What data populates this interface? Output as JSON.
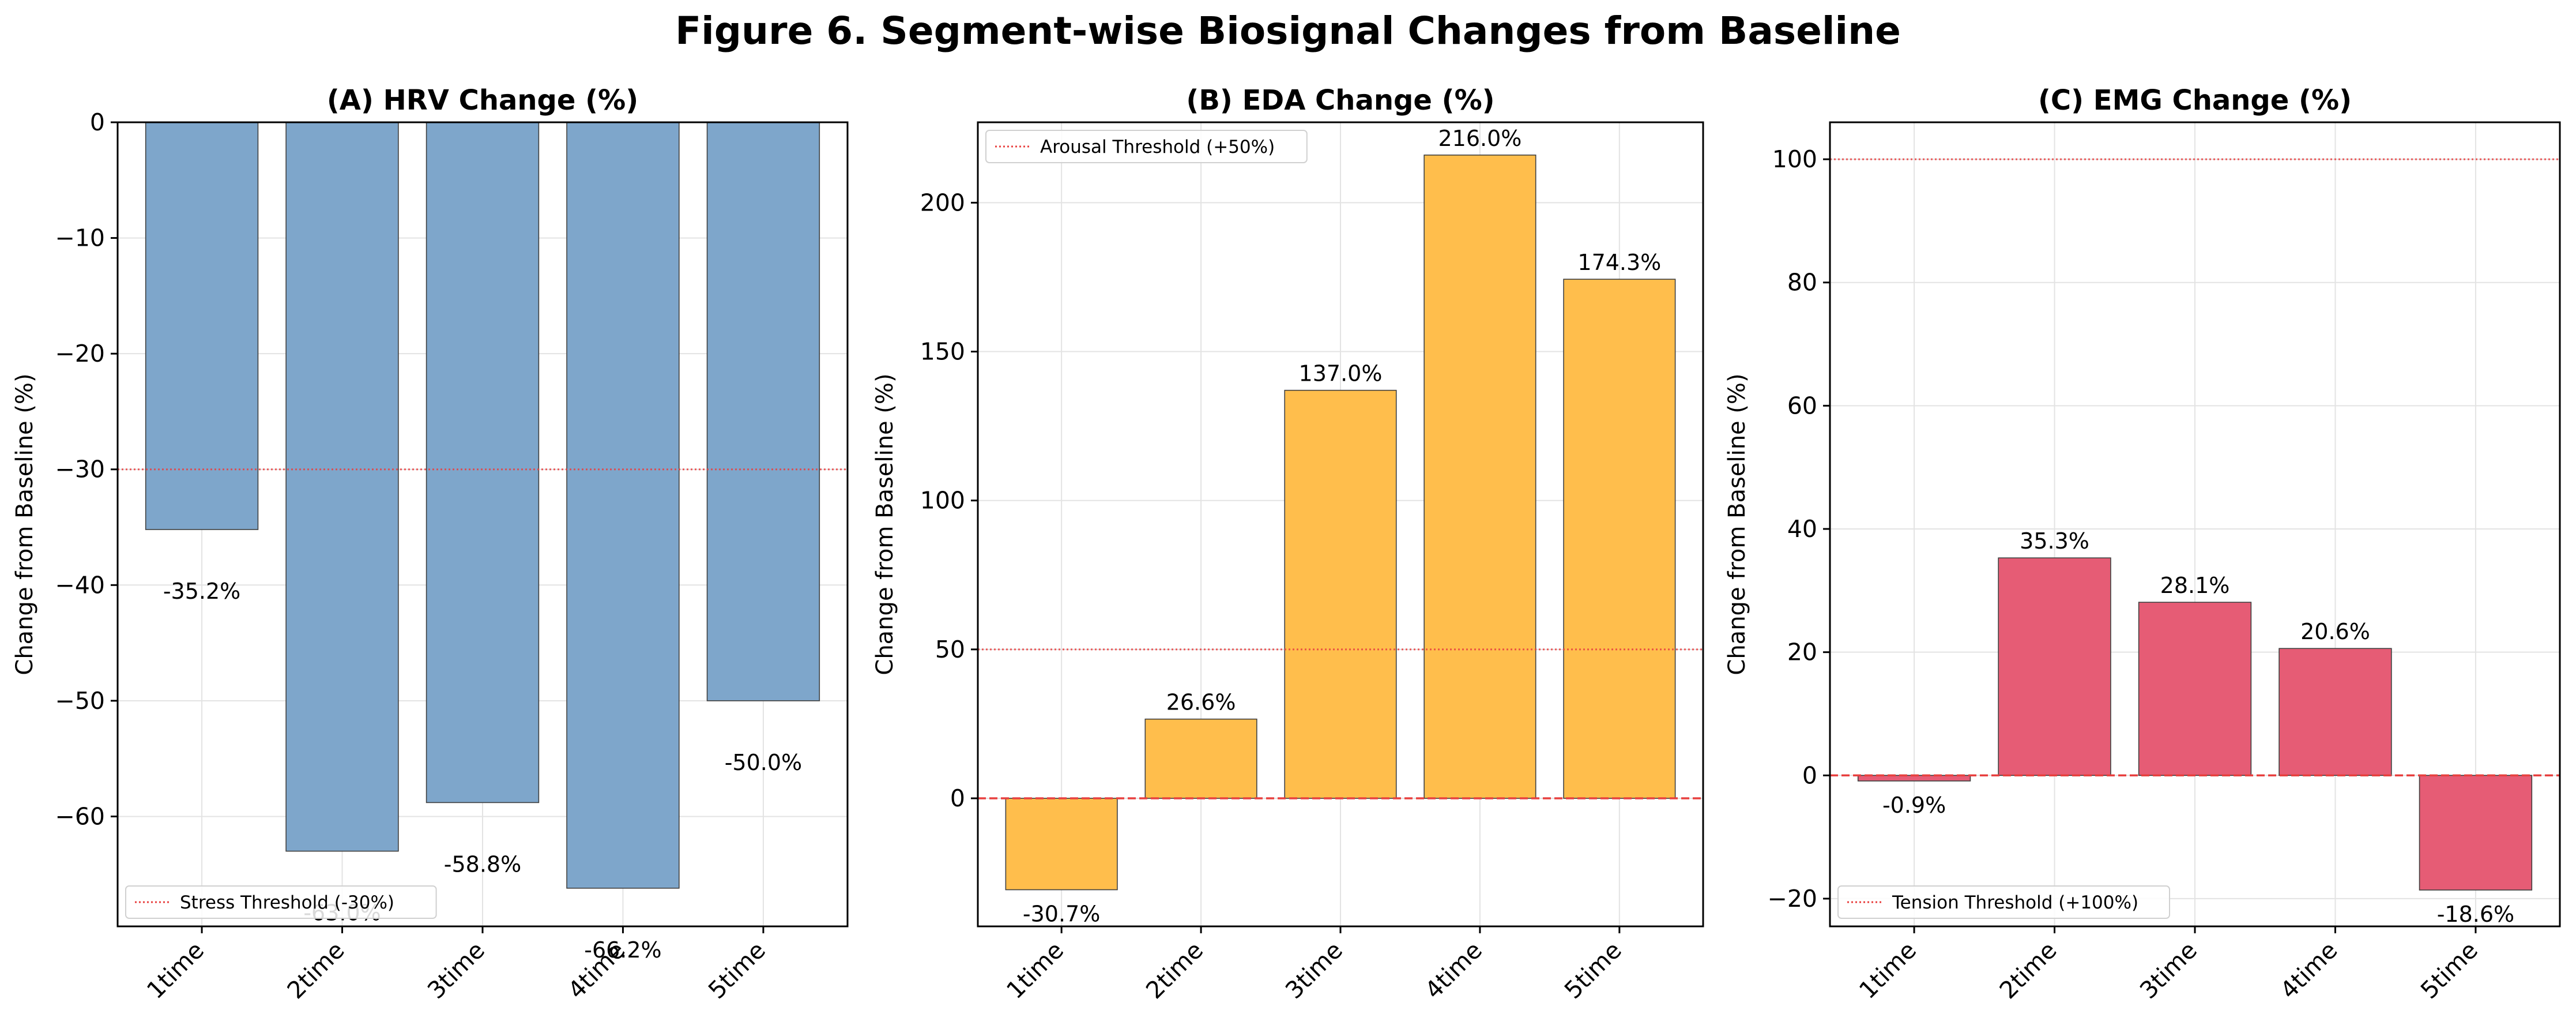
{
  "figure": {
    "title": "Figure 6. Segment-wise Biosignal Changes from Baseline"
  },
  "chart_data": [
    {
      "type": "bar",
      "title": "(A) HRV Change (%)",
      "xlabel": "",
      "ylabel": "Change from Baseline (%)",
      "categories": [
        "1time",
        "2time",
        "3time",
        "4time",
        "5time"
      ],
      "values": [
        -35.2,
        -63.0,
        -58.8,
        -66.2,
        -50.0
      ],
      "value_labels": [
        "-35.2%",
        "-63.0%",
        "-58.8%",
        "-66.2%",
        "-50.0%"
      ],
      "yticks": [
        0,
        -10,
        -20,
        -30,
        -40,
        -50,
        -60
      ],
      "ylim": [
        -69.5,
        0
      ],
      "bar_color": "#7ea6cb",
      "threshold": {
        "value": -30,
        "label": "Stress Threshold (-30%)",
        "color": "#e8403f"
      },
      "zero_line": false,
      "legend_position": "lower-left",
      "grid": true
    },
    {
      "type": "bar",
      "title": "(B) EDA Change (%)",
      "xlabel": "",
      "ylabel": "Change from Baseline (%)",
      "categories": [
        "1time",
        "2time",
        "3time",
        "4time",
        "5time"
      ],
      "values": [
        -30.7,
        26.6,
        137.0,
        216.0,
        174.3
      ],
      "value_labels": [
        "-30.7%",
        "26.6%",
        "137.0%",
        "216.0%",
        "174.3%"
      ],
      "yticks": [
        0,
        50,
        100,
        150,
        200
      ],
      "ylim": [
        -43,
        227
      ],
      "bar_color": "#ffbe4c",
      "threshold": {
        "value": 50,
        "label": "Arousal Threshold (+50%)",
        "color": "#e8403f"
      },
      "zero_line": true,
      "legend_position": "upper-left",
      "grid": true
    },
    {
      "type": "bar",
      "title": "(C) EMG Change (%)",
      "xlabel": "",
      "ylabel": "Change from Baseline (%)",
      "categories": [
        "1time",
        "2time",
        "3time",
        "4time",
        "5time"
      ],
      "values": [
        -0.9,
        35.3,
        28.1,
        20.6,
        -18.6
      ],
      "value_labels": [
        "-0.9%",
        "35.3%",
        "28.1%",
        "20.6%",
        "-18.6%"
      ],
      "yticks": [
        -20,
        0,
        20,
        40,
        60,
        80,
        100
      ],
      "ylim": [
        -24.5,
        106
      ],
      "bar_color": "#e65c75",
      "threshold": {
        "value": 100,
        "label": "Tension Threshold (+100%)",
        "color": "#e8403f"
      },
      "zero_line": true,
      "legend_position": "lower-left",
      "grid": true
    }
  ]
}
